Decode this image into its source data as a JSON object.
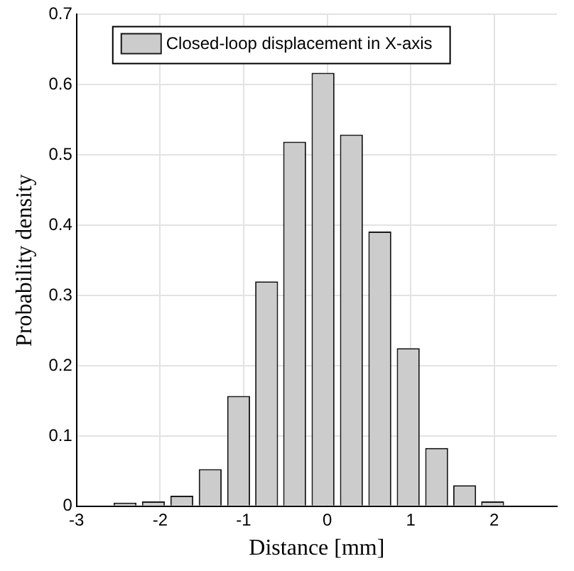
{
  "chart_data": {
    "type": "histogram",
    "xlabel": "Distance [mm]",
    "ylabel": "Probability density",
    "bins": [
      -2.59,
      -2.25,
      -1.91,
      -1.57,
      -1.23,
      -0.89,
      -0.56,
      -0.22,
      0.12,
      0.46,
      0.8,
      1.14,
      1.48,
      1.81,
      2.15,
      2.49
    ],
    "series": [
      {
        "name": "Closed-loop displacement in X-axis",
        "color": "#cccccc",
        "values": [
          0.005,
          0.007,
          0.015,
          0.053,
          0.157,
          0.32,
          0.519,
          0.617,
          0.529,
          0.391,
          0.225,
          0.083,
          0.03,
          0.007,
          0.001
        ]
      }
    ],
    "xlim": [
      -3,
      2.75
    ],
    "xticks": [
      -3,
      -2,
      -1,
      0,
      1,
      2
    ],
    "ylim": [
      0,
      0.7
    ],
    "yticks": [
      0,
      0.1,
      0.2,
      0.3,
      0.4,
      0.5,
      0.6,
      0.7
    ],
    "grid": true,
    "legend": "top left"
  }
}
